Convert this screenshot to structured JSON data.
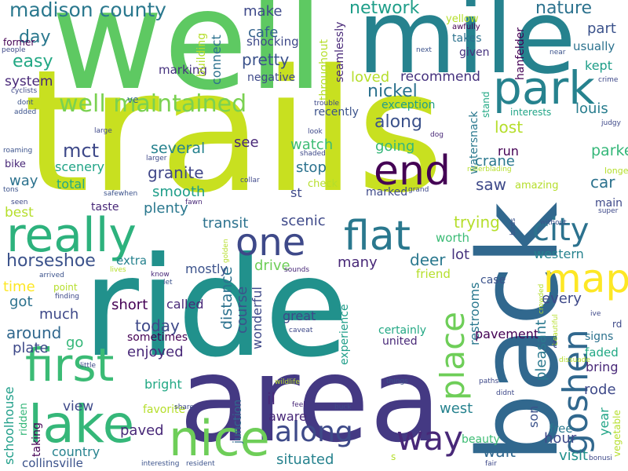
{
  "palette": [
    "#440154",
    "#482878",
    "#3e4989",
    "#31688e",
    "#26828e",
    "#1f9e89",
    "#35b779",
    "#6ece58",
    "#b5de2b",
    "#fde725"
  ],
  "words": [
    {
      "text": "trails",
      "color": "#c8e020"
    },
    {
      "text": "well",
      "color": "#5ec962"
    },
    {
      "text": "mile",
      "color": "#26828e"
    },
    {
      "text": "ride",
      "color": "#21918c"
    },
    {
      "text": "area",
      "color": "#443983"
    },
    {
      "text": "back",
      "color": "#31688e"
    },
    {
      "text": "really",
      "color": "#2db27d"
    },
    {
      "text": "nice",
      "color": "#6ece58"
    },
    {
      "text": "lake",
      "color": "#35b779"
    },
    {
      "text": "first",
      "color": "#3bbb75"
    },
    {
      "text": "park",
      "color": "#26828e"
    },
    {
      "text": "flat",
      "color": "#2a788e"
    },
    {
      "text": "end",
      "color": "#440154"
    },
    {
      "text": "one",
      "color": "#3e4989"
    },
    {
      "text": "map",
      "color": "#fde725"
    },
    {
      "text": "city",
      "color": "#2c728e"
    },
    {
      "text": "goshen",
      "color": "#31688e"
    },
    {
      "text": "way",
      "color": "#482878"
    },
    {
      "text": "along",
      "color": "#3e4a89"
    },
    {
      "text": "place",
      "color": "#6ece58"
    },
    {
      "text": "well maintained",
      "color": "#7ad151"
    },
    {
      "text": "madison county",
      "color": "#2a788e"
    },
    {
      "text": "nature",
      "color": "#2c728e"
    },
    {
      "text": "network",
      "color": "#1f9e89"
    },
    {
      "text": "make",
      "color": "#3e4989"
    },
    {
      "text": "cafe",
      "color": "#33638d"
    },
    {
      "text": "pretty",
      "color": "#3b528b"
    },
    {
      "text": "shocking",
      "color": "#3e4989"
    },
    {
      "text": "easy",
      "color": "#22a884"
    },
    {
      "text": "day",
      "color": "#2a788e"
    },
    {
      "text": "system",
      "color": "#482878"
    },
    {
      "text": "recommend",
      "color": "#46327e"
    },
    {
      "text": "loved",
      "color": "#b5de2b"
    },
    {
      "text": "nickel",
      "color": "#2c728e"
    },
    {
      "text": "exception",
      "color": "#1f9e89"
    },
    {
      "text": "recently",
      "color": "#3b528b"
    },
    {
      "text": "along",
      "color": "#3b528b"
    },
    {
      "text": "mct",
      "color": "#3e4989"
    },
    {
      "text": "scenery",
      "color": "#20a486"
    },
    {
      "text": "several",
      "color": "#26828e"
    },
    {
      "text": "granite",
      "color": "#404688"
    },
    {
      "text": "watch",
      "color": "#3dbc74"
    },
    {
      "text": "going",
      "color": "#35b779"
    },
    {
      "text": "see",
      "color": "#482878"
    },
    {
      "text": "stop",
      "color": "#2c728e"
    },
    {
      "text": "crane",
      "color": "#2a788e"
    },
    {
      "text": "saw",
      "color": "#3e4989"
    },
    {
      "text": "run",
      "color": "#440154"
    },
    {
      "text": "lost",
      "color": "#b5de2b"
    },
    {
      "text": "louis",
      "color": "#287d8e"
    },
    {
      "text": "parked",
      "color": "#35b779"
    },
    {
      "text": "car",
      "color": "#2c728e"
    },
    {
      "text": "part",
      "color": "#3b528b"
    },
    {
      "text": "usually",
      "color": "#2c728e"
    },
    {
      "text": "kept",
      "color": "#1f9e89"
    },
    {
      "text": "total",
      "color": "#22a884"
    },
    {
      "text": "smooth",
      "color": "#1f9e89"
    },
    {
      "text": "plenty",
      "color": "#2a788e"
    },
    {
      "text": "st",
      "color": "#3e4989"
    },
    {
      "text": "transit",
      "color": "#2c728e"
    },
    {
      "text": "scenic",
      "color": "#3e4989"
    },
    {
      "text": "trying",
      "color": "#b5de2b"
    },
    {
      "text": "worth",
      "color": "#3bbb75"
    },
    {
      "text": "lot",
      "color": "#46327e"
    },
    {
      "text": "western",
      "color": "#26828e"
    },
    {
      "text": "deer",
      "color": "#2a788e"
    },
    {
      "text": "many",
      "color": "#482878"
    },
    {
      "text": "drive",
      "color": "#6ece58"
    },
    {
      "text": "horseshoe",
      "color": "#3b528b"
    },
    {
      "text": "time",
      "color": "#fde725"
    },
    {
      "text": "got",
      "color": "#2c728e"
    },
    {
      "text": "much",
      "color": "#3e4989"
    },
    {
      "text": "around",
      "color": "#31688e"
    },
    {
      "text": "plate",
      "color": "#3e4989"
    },
    {
      "text": "go",
      "color": "#35b779"
    },
    {
      "text": "short",
      "color": "#440154"
    },
    {
      "text": "today",
      "color": "#3e4989"
    },
    {
      "text": "enjoyed",
      "color": "#482878"
    },
    {
      "text": "called",
      "color": "#482878"
    },
    {
      "text": "sometimes",
      "color": "#440154"
    },
    {
      "text": "great",
      "color": "#3e4989"
    },
    {
      "text": "wonderful",
      "color": "#3e4989"
    },
    {
      "text": "distance",
      "color": "#2c728e"
    },
    {
      "text": "course",
      "color": "#3b528b"
    },
    {
      "text": "mostly",
      "color": "#3b528b"
    },
    {
      "text": "extra",
      "color": "#26828e"
    },
    {
      "text": "friend",
      "color": "#b5de2b"
    },
    {
      "text": "every",
      "color": "#3e4989"
    },
    {
      "text": "restrooms",
      "color": "#2a788e"
    },
    {
      "text": "case",
      "color": "#3b528b"
    },
    {
      "text": "pavement",
      "color": "#440154"
    },
    {
      "text": "certainly",
      "color": "#22a884"
    },
    {
      "text": "united",
      "color": "#482878"
    },
    {
      "text": "signs",
      "color": "#2c728e"
    },
    {
      "text": "faded",
      "color": "#22a884"
    },
    {
      "text": "bring",
      "color": "#482878"
    },
    {
      "text": "rode",
      "color": "#3e4989"
    },
    {
      "text": "west",
      "color": "#26828e"
    },
    {
      "text": "son",
      "color": "#3b528b"
    },
    {
      "text": "pleasant",
      "color": "#2a788e"
    },
    {
      "text": "hour",
      "color": "#3e4989"
    },
    {
      "text": "wait",
      "color": "#31688e"
    },
    {
      "text": "visit",
      "color": "#21918c"
    },
    {
      "text": "free",
      "color": "#2a788e"
    },
    {
      "text": "year",
      "color": "#20a486"
    },
    {
      "text": "vegetable",
      "color": "#b5de2b"
    },
    {
      "text": "beauty",
      "color": "#3dbc74"
    },
    {
      "text": "paved",
      "color": "#482878"
    },
    {
      "text": "country",
      "color": "#26828e"
    },
    {
      "text": "situated",
      "color": "#26828e"
    },
    {
      "text": "collinsville",
      "color": "#3b528b"
    },
    {
      "text": "schoolhouse",
      "color": "#1f9e89"
    },
    {
      "text": "ridden",
      "color": "#35b779"
    },
    {
      "text": "taking",
      "color": "#440154"
    },
    {
      "text": "view",
      "color": "#3e4989"
    },
    {
      "text": "favorite",
      "color": "#b5de2b"
    },
    {
      "text": "bright",
      "color": "#22a884"
    },
    {
      "text": "il",
      "color": "#482878"
    },
    {
      "text": "aware",
      "color": "#482878"
    },
    {
      "text": "junction",
      "color": "#31688e"
    },
    {
      "text": "experience",
      "color": "#1f9e89"
    },
    {
      "text": "connect",
      "color": "#2c728e"
    },
    {
      "text": "marking",
      "color": "#46327e"
    },
    {
      "text": "building",
      "color": "#b5de2b"
    },
    {
      "text": "negative",
      "color": "#3e4989"
    },
    {
      "text": "throughout",
      "color": "#b5de2b"
    },
    {
      "text": "seamlessly",
      "color": "#482878"
    },
    {
      "text": "yellow",
      "color": "#b5de2b"
    },
    {
      "text": "awfully",
      "color": "#440154"
    },
    {
      "text": "takes",
      "color": "#2c728e"
    },
    {
      "text": "given",
      "color": "#46327e"
    },
    {
      "text": "hanfelder",
      "color": "#440154"
    },
    {
      "text": "watersnack",
      "color": "#2a788e"
    },
    {
      "text": "stand",
      "color": "#22a884"
    },
    {
      "text": "interests",
      "color": "#20a486"
    },
    {
      "text": "amazing",
      "color": "#b5de2b"
    },
    {
      "text": "marked",
      "color": "#3e4989"
    },
    {
      "text": "check",
      "color": "#b5de2b"
    },
    {
      "text": "longer",
      "color": "#b5de2b"
    },
    {
      "text": "main",
      "color": "#3e4989"
    },
    {
      "text": "taste",
      "color": "#482878"
    },
    {
      "text": "best",
      "color": "#b5de2b"
    },
    {
      "text": "way",
      "color": "#2c728e"
    },
    {
      "text": "bike",
      "color": "#482878"
    },
    {
      "text": "former",
      "color": "#440154"
    },
    {
      "text": "people",
      "color": "#3e4989"
    },
    {
      "text": "cyclists",
      "color": "#3e4989"
    },
    {
      "text": "dont",
      "color": "#3b528b"
    },
    {
      "text": "added",
      "color": "#3b528b"
    },
    {
      "text": "ve",
      "color": "#31688e"
    },
    {
      "text": "trouble",
      "color": "#3e4989"
    },
    {
      "text": "next",
      "color": "#3b528b"
    },
    {
      "text": "near",
      "color": "#3b528b"
    },
    {
      "text": "crime",
      "color": "#3e4989"
    },
    {
      "text": "judgy",
      "color": "#3e4989"
    },
    {
      "text": "large",
      "color": "#3e4989"
    },
    {
      "text": "look",
      "color": "#3e4989"
    },
    {
      "text": "dog",
      "color": "#482878"
    },
    {
      "text": "shaded",
      "color": "#3e4989"
    },
    {
      "text": "larger",
      "color": "#3e4989"
    },
    {
      "text": "collar",
      "color": "#3e4989"
    },
    {
      "text": "roaming",
      "color": "#3b528b"
    },
    {
      "text": "safewhen",
      "color": "#3b528b"
    },
    {
      "text": "tons",
      "color": "#3b528b"
    },
    {
      "text": "seen",
      "color": "#3e4989"
    },
    {
      "text": "fawn",
      "color": "#482878"
    },
    {
      "text": "grand",
      "color": "#3e4989"
    },
    {
      "text": "rollerblading",
      "color": "#b5de2b"
    },
    {
      "text": "birds",
      "color": "#3b528b"
    },
    {
      "text": "without",
      "color": "#3b528b"
    },
    {
      "text": "super",
      "color": "#3e4989"
    },
    {
      "text": "golden",
      "color": "#b5de2b"
    },
    {
      "text": "lives",
      "color": "#b5de2b"
    },
    {
      "text": "know",
      "color": "#482878"
    },
    {
      "text": "sounds",
      "color": "#482878"
    },
    {
      "text": "let",
      "color": "#3b528b"
    },
    {
      "text": "arrived",
      "color": "#3b528b"
    },
    {
      "text": "point",
      "color": "#b5de2b"
    },
    {
      "text": "finding",
      "color": "#3e4989"
    },
    {
      "text": "caveat",
      "color": "#3e4989"
    },
    {
      "text": "crowded",
      "color": "#b5de2b"
    },
    {
      "text": "beautiful",
      "color": "#b5de2b"
    },
    {
      "text": "ive",
      "color": "#3e4989"
    },
    {
      "text": "rd",
      "color": "#3e4989"
    },
    {
      "text": "dissuade",
      "color": "#b5de2b"
    },
    {
      "text": "t",
      "color": "#3e4989"
    },
    {
      "text": "little",
      "color": "#3e4989"
    },
    {
      "text": "wildlife",
      "color": "#b5de2b"
    },
    {
      "text": "feel",
      "color": "#482878"
    },
    {
      "text": "things",
      "color": "#3b528b"
    },
    {
      "text": "paths",
      "color": "#3e4989"
    },
    {
      "text": "didnt",
      "color": "#3e4989"
    },
    {
      "text": "share",
      "color": "#3e4989"
    },
    {
      "text": "buck",
      "color": "#3e4989"
    },
    {
      "text": "s",
      "color": "#b5de2b"
    },
    {
      "text": "interesting",
      "color": "#3b528b"
    },
    {
      "text": "resident",
      "color": "#3b528b"
    },
    {
      "text": "fair",
      "color": "#3e4989"
    },
    {
      "text": "bonusi",
      "color": "#3e4989"
    }
  ]
}
